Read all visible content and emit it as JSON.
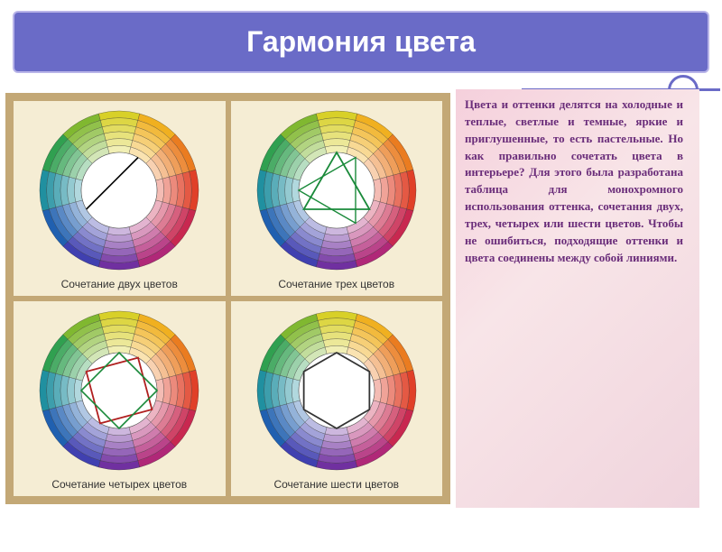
{
  "title": "Гармония цвета",
  "body_text": "Цвета и оттенки делятся на холодные и теплые, светлые и темные, яркие и приглушенные, то есть пастельные. Но как правильно сочетать цвета в интерьере? Для этого была разработана таблица для монохромного использования оттенка, сочетания двух, трех, четырех или шести цветов. Чтобы не ошибиться, подходящие оттенки и цвета соединены между собой линиями.",
  "wheels": [
    {
      "caption": "Сочетание двух цветов",
      "overlay": "line2"
    },
    {
      "caption": "Сочетание трех цветов",
      "overlay": "triangle"
    },
    {
      "caption": "Сочетание четырех цветов",
      "overlay": "square"
    },
    {
      "caption": "Сочетание шести цветов",
      "overlay": "hexagon"
    }
  ],
  "wheel_segments": 12,
  "wheel_rings": 6,
  "wheel_colors": {
    "base": [
      "#d8d028",
      "#f0b020",
      "#ea7c20",
      "#e04028",
      "#c82850",
      "#b02878",
      "#7030a0",
      "#4040b0",
      "#2060b0",
      "#2090a0",
      "#30a050",
      "#80b830"
    ]
  },
  "accent_border": "#c3a876",
  "cell_bg": "#f5edd4",
  "title_bg": "#6a6bc7",
  "text_color": "#6a2d7a"
}
